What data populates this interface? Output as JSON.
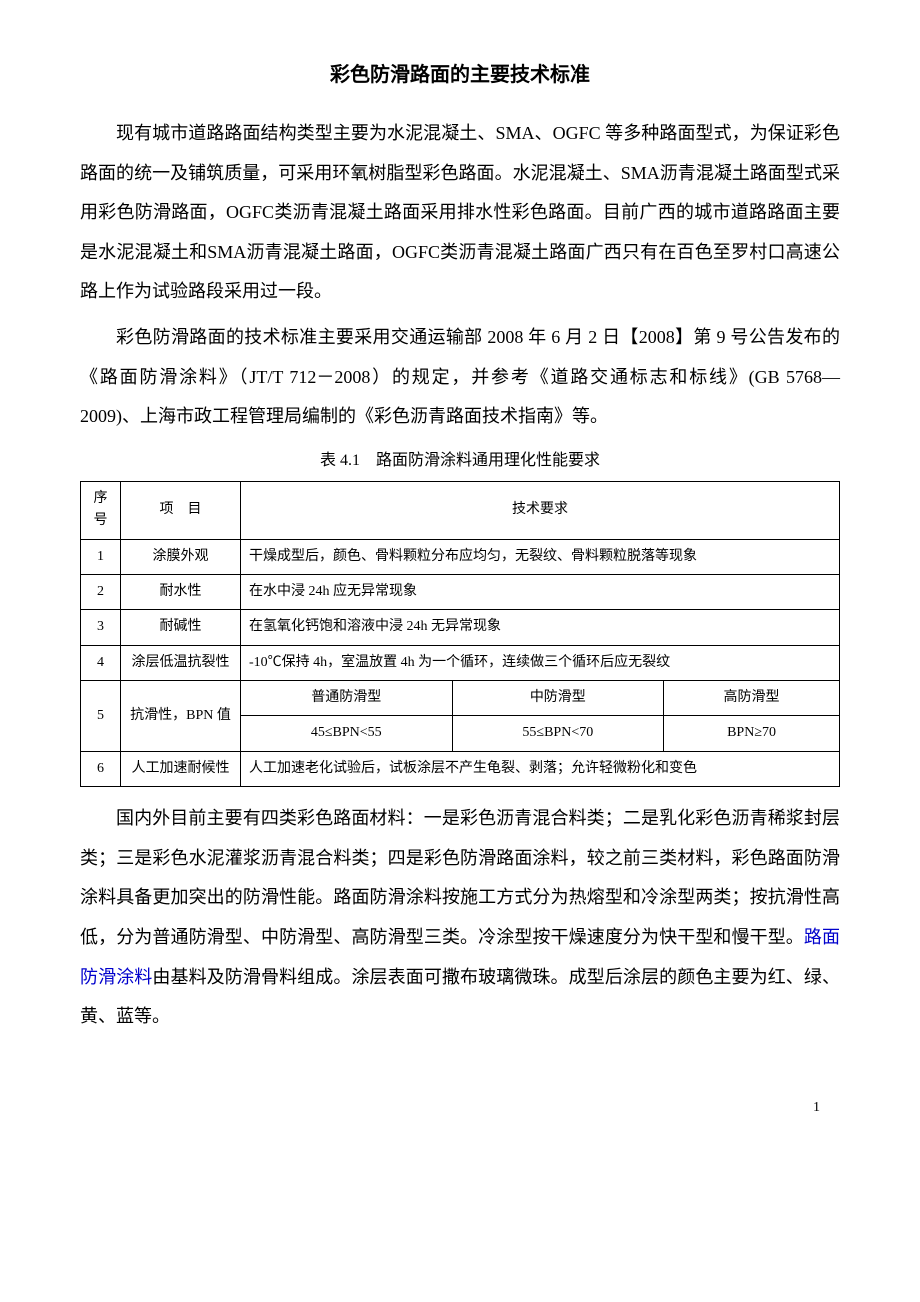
{
  "title": "彩色防滑路面的主要技术标准",
  "para1": "现有城市道路路面结构类型主要为水泥混凝土、SMA、OGFC 等多种路面型式，为保证彩色路面的统一及铺筑质量，可采用环氧树脂型彩色路面。水泥混凝土、SMA沥青混凝土路面型式采用彩色防滑路面，OGFC类沥青混凝土路面采用排水性彩色路面。目前广西的城市道路路面主要是水泥混凝土和SMA沥青混凝土路面，OGFC类沥青混凝土路面广西只有在百色至罗村口高速公路上作为试验路段采用过一段。",
  "para2": "彩色防滑路面的技术标准主要采用交通运输部 2008 年 6 月 2 日【2008】第 9 号公告发布的《路面防滑涂料》（JT/T 712－2008）的规定，并参考《道路交通标志和标线》(GB 5768—2009)、上海市政工程管理局编制的《彩色沥青路面技术指南》等。",
  "table_caption": "表 4.1　路面防滑涂料通用理化性能要求",
  "table": {
    "header": {
      "c1": "序号",
      "c2": "项　目",
      "c3": "技术要求"
    },
    "row1": {
      "n": "1",
      "item": "涂膜外观",
      "req": "干燥成型后，颜色、骨料颗粒分布应均匀，无裂纹、骨料颗粒脱落等现象"
    },
    "row2": {
      "n": "2",
      "item": "耐水性",
      "req": "在水中浸 24h 应无异常现象"
    },
    "row3": {
      "n": "3",
      "item": "耐碱性",
      "req": "在氢氧化钙饱和溶液中浸 24h 无异常现象"
    },
    "row4": {
      "n": "4",
      "item": "涂层低温抗裂性",
      "req": "-10℃保持 4h，室温放置 4h 为一个循环，连续做三个循环后应无裂纹"
    },
    "row5": {
      "n": "5",
      "item": "抗滑性，BPN 值",
      "h1": "普通防滑型",
      "h2": "中防滑型",
      "h3": "高防滑型",
      "v1": "45≤BPN<55",
      "v2": "55≤BPN<70",
      "v3": "BPN≥70"
    },
    "row6": {
      "n": "6",
      "item": "人工加速耐候性",
      "req": "人工加速老化试验后，试板涂层不产生龟裂、剥落；允许轻微粉化和变色"
    }
  },
  "para3a": "国内外目前主要有四类彩色路面材料：一是彩色沥青混合料类；二是乳化彩色沥青稀浆封层类；三是彩色水泥灌浆沥青混合料类；四是彩色防滑路面涂料，较之前三类材料，彩色路面防滑涂料具备更加突出的防滑性能。路面防滑涂料按施工方式分为热熔型和冷涂型两类；按抗滑性高低，分为普通防滑型、中防滑型、高防滑型三类。冷涂型按干燥速度分为快干型和慢干型。",
  "link_text": "路面防滑涂料",
  "para3b": "由基料及防滑骨料组成。涂层表面可撒布玻璃微珠。成型后涂层的颜色主要为红、绿、黄、蓝等。",
  "page_number": "1"
}
